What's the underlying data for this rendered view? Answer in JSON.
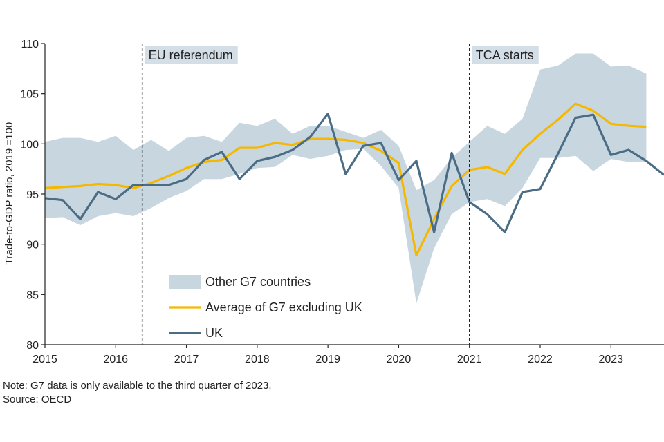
{
  "chart_data": {
    "type": "line",
    "ylabel": "Trade-to-GDP ratio, 2019 =100",
    "xlim": [
      2015,
      2023.75
    ],
    "ylim": [
      80,
      110
    ],
    "yticks": [
      80,
      85,
      90,
      95,
      100,
      105,
      110
    ],
    "xticks": [
      2015,
      2016,
      2017,
      2018,
      2019,
      2020,
      2021,
      2022,
      2023
    ],
    "grid": false,
    "legend_position": "lower-left",
    "colors": {
      "band": "#c8d6e0",
      "average": "#f5b800",
      "uk": "#4a6c85",
      "annotation_box": "#d3dee6"
    },
    "annotations": [
      {
        "x": 2016.375,
        "label": "EU referendum"
      },
      {
        "x": 2021.0,
        "label": "TCA starts"
      }
    ],
    "x": [
      2015,
      2015.25,
      2015.5,
      2015.75,
      2016,
      2016.25,
      2016.5,
      2016.75,
      2017,
      2017.25,
      2017.5,
      2017.75,
      2018,
      2018.25,
      2018.5,
      2018.75,
      2019,
      2019.25,
      2019.5,
      2019.75,
      2020,
      2020.25,
      2020.5,
      2020.75,
      2021,
      2021.25,
      2021.5,
      2021.75,
      2022,
      2022.25,
      2022.5,
      2022.75,
      2023,
      2023.25,
      2023.5,
      2023.75
    ],
    "series": [
      {
        "name": "Other G7 countries",
        "kind": "band",
        "upper": [
          100.2,
          100.6,
          100.6,
          100.2,
          100.8,
          99.4,
          100.4,
          99.3,
          100.6,
          100.8,
          100.2,
          102.1,
          101.8,
          102.5,
          101.0,
          101.8,
          101.8,
          101.2,
          100.6,
          101.4,
          99.8,
          95.4,
          96.4,
          98.6,
          100.2,
          101.8,
          101.0,
          102.5,
          107.4,
          107.8,
          109.0,
          109.0,
          107.7,
          107.8,
          107.0,
          null
        ],
        "lower": [
          92.6,
          92.7,
          91.9,
          92.8,
          93.1,
          92.8,
          93.6,
          94.6,
          95.3,
          96.5,
          96.5,
          97.0,
          97.6,
          97.7,
          98.9,
          98.5,
          98.8,
          99.4,
          99.5,
          97.8,
          95.6,
          84.1,
          89.6,
          93.0,
          94.2,
          94.5,
          93.8,
          95.6,
          98.6,
          98.6,
          98.8,
          97.3,
          98.5,
          98.2,
          98.2,
          null
        ]
      },
      {
        "name": "Average of G7 excluding UK",
        "kind": "line",
        "values": [
          95.6,
          95.7,
          95.8,
          96.0,
          95.9,
          95.6,
          96.1,
          96.8,
          97.6,
          98.2,
          98.4,
          99.6,
          99.6,
          100.1,
          99.9,
          100.5,
          100.5,
          100.4,
          100.1,
          99.3,
          98.1,
          88.9,
          92.5,
          95.8,
          97.4,
          97.7,
          97.0,
          99.4,
          101.0,
          102.4,
          104.0,
          103.3,
          102.0,
          101.8,
          101.7,
          null
        ]
      },
      {
        "name": "UK",
        "kind": "line",
        "values": [
          94.6,
          94.4,
          92.5,
          95.2,
          94.5,
          95.9,
          95.9,
          95.9,
          96.5,
          98.4,
          99.2,
          96.5,
          98.3,
          98.7,
          99.4,
          100.7,
          103.0,
          97.0,
          99.8,
          100.1,
          96.4,
          98.3,
          91.2,
          99.1,
          94.2,
          93.0,
          91.2,
          95.2,
          95.5,
          99.0,
          102.6,
          102.9,
          98.9,
          99.4,
          98.3,
          96.9
        ]
      }
    ]
  },
  "footnotes": {
    "note": "Note: G7 data is only available to the third quarter of 2023.",
    "source": "Source: OECD"
  }
}
